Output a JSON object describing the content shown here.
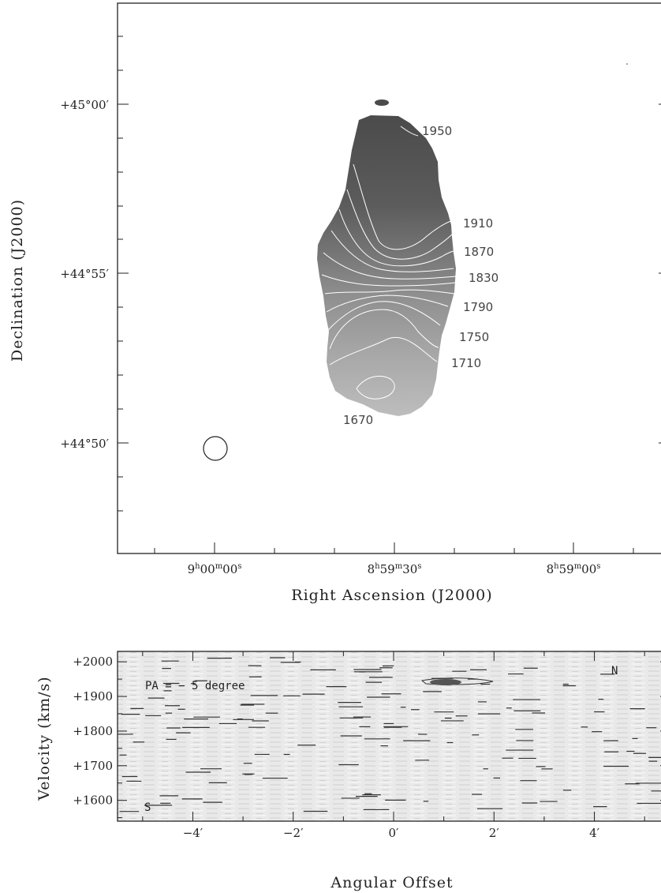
{
  "chart_data": [
    {
      "type": "heatmap",
      "xlabel": "Right Ascension (J2000)",
      "ylabel": "Declination (J2000)",
      "x_ticks": [
        {
          "h": "9",
          "m": "00",
          "s": "00"
        },
        {
          "h": "8",
          "m": "59",
          "s": "30"
        },
        {
          "h": "8",
          "m": "59",
          "s": "00"
        }
      ],
      "y_ticks": [
        "+45°00′",
        "+44°55′",
        "+44°50′"
      ],
      "contour_levels": [
        "1950",
        "1910",
        "1870",
        "1830",
        "1790",
        "1750",
        "1710",
        "1670"
      ]
    },
    {
      "type": "heatmap",
      "xlabel": "Angular Offset",
      "ylabel": "Velocity (km/s)",
      "x_ticks": [
        "−4′",
        "−2′",
        "0′",
        "2′",
        "4′"
      ],
      "y_ticks": [
        "+2000",
        "+1900",
        "+1800",
        "+1700",
        "+1600"
      ],
      "xlim": [
        -5.5,
        5.5
      ],
      "ylim": [
        1540,
        2030
      ],
      "annotation_pa": "PA = − 5 degree",
      "label_n": "N",
      "label_s": "S"
    }
  ]
}
